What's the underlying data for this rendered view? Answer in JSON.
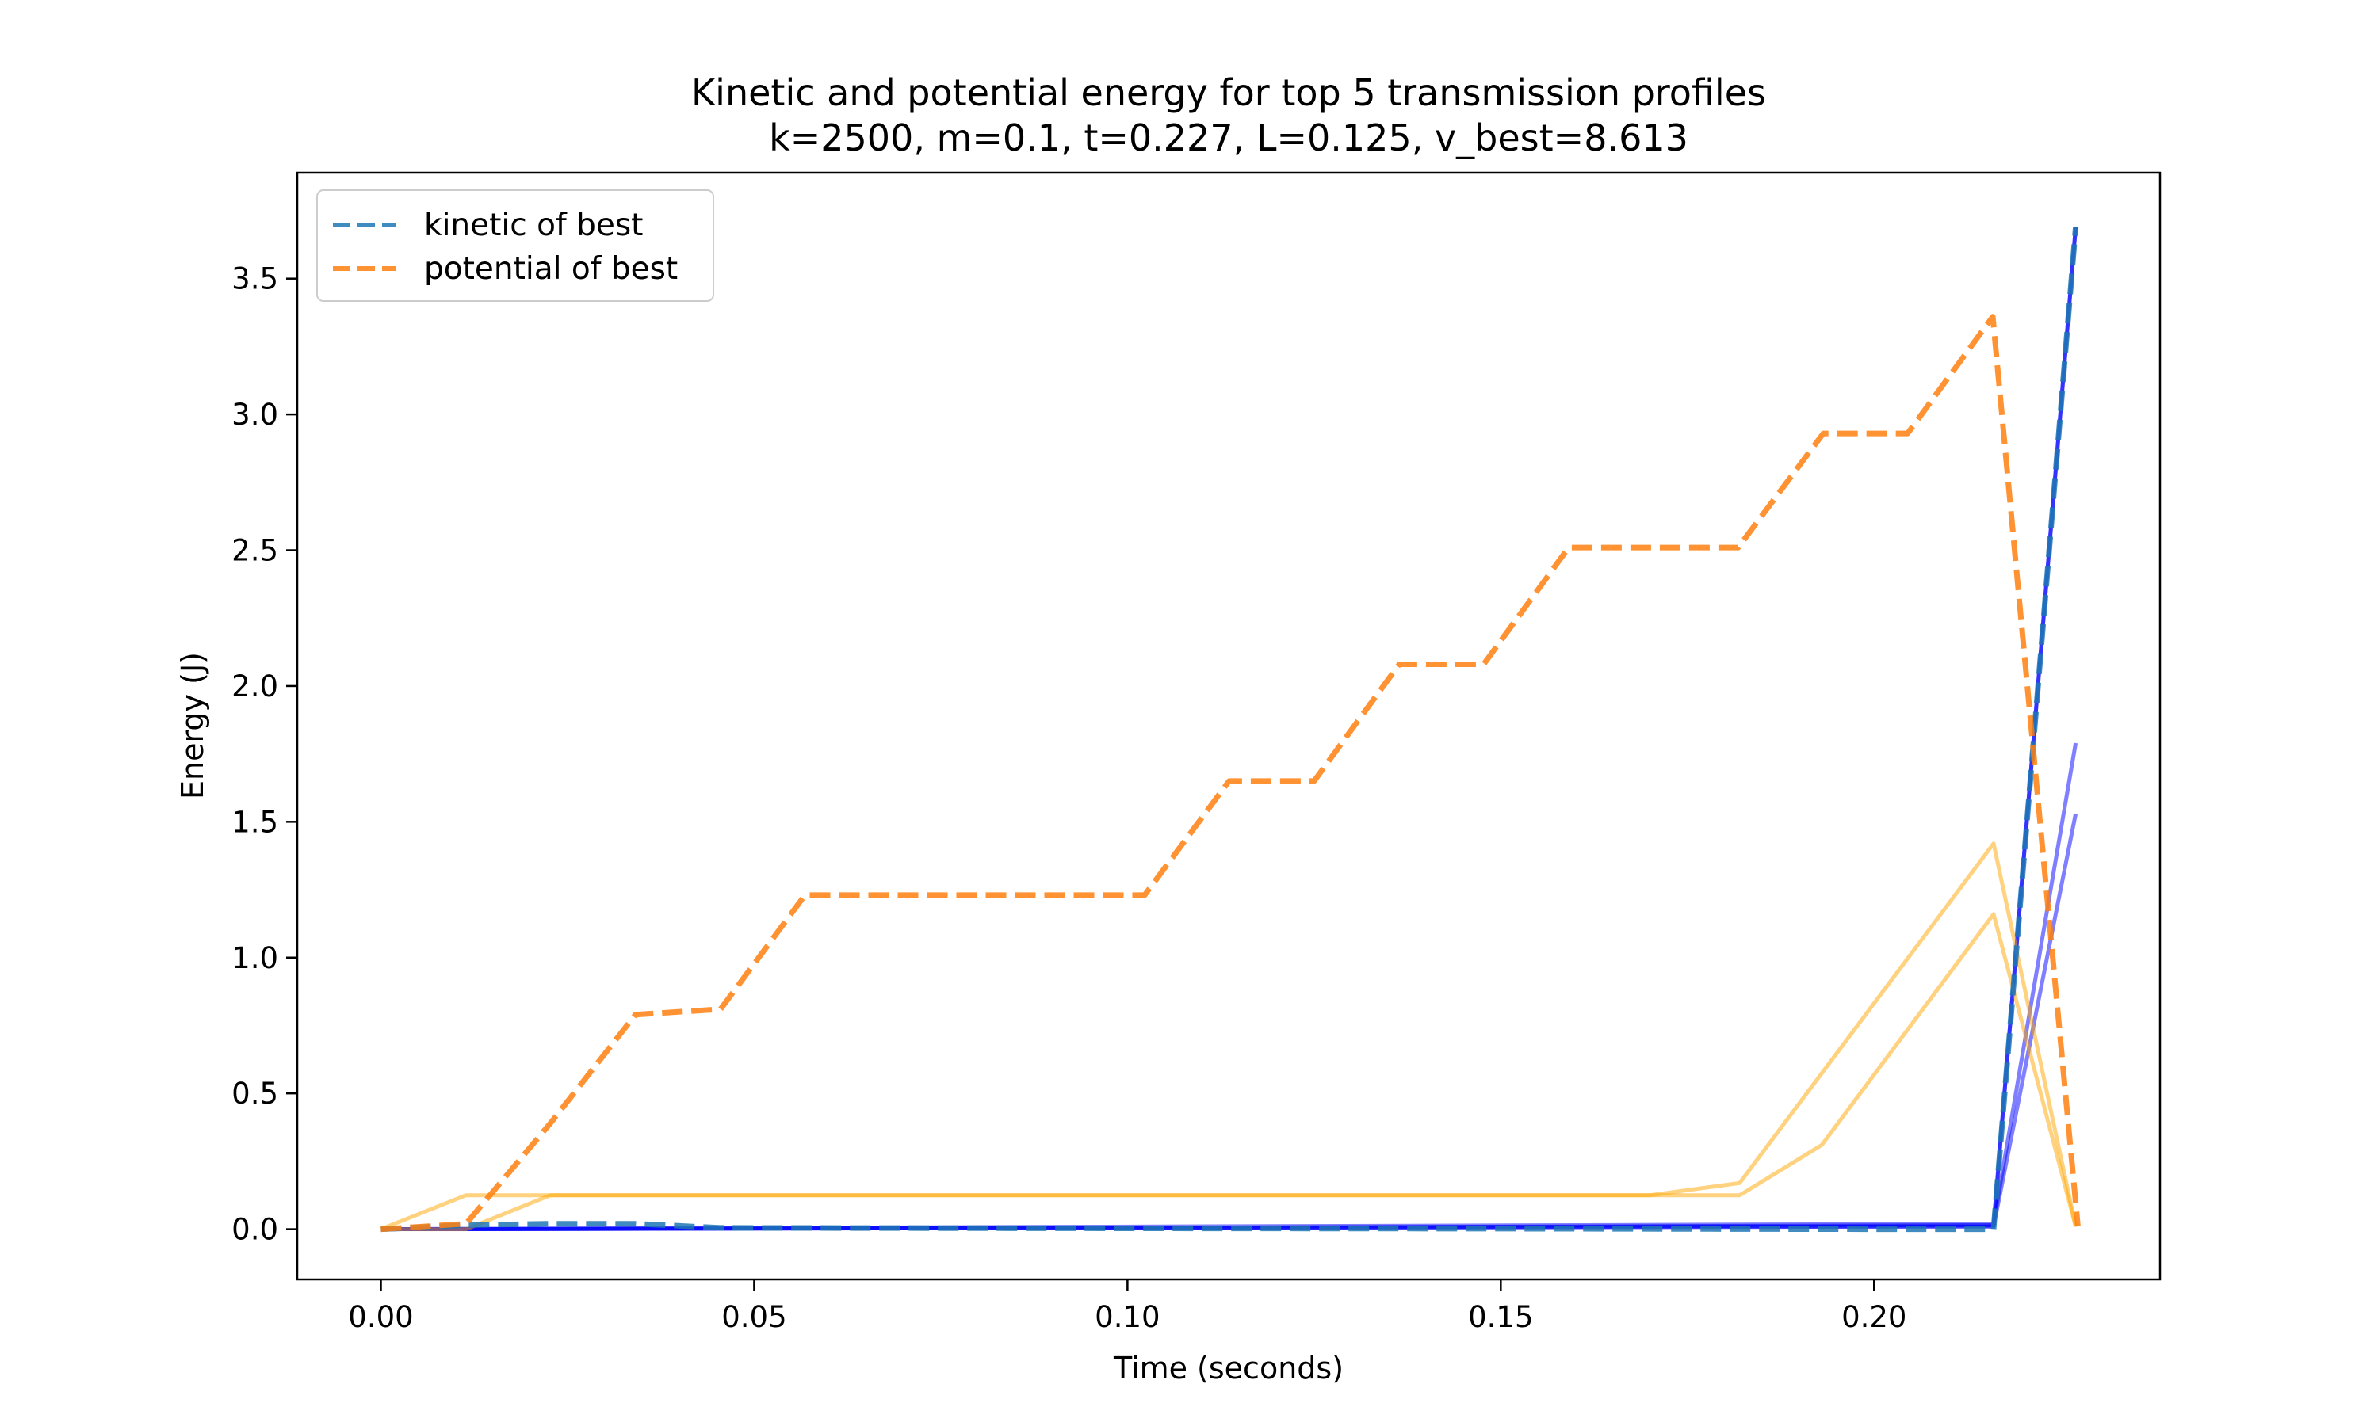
{
  "chart_data": {
    "type": "line",
    "title": "Kinetic and potential energy for top 5 transmission profiles",
    "subtitle": "k=2500, m=0.1, t=0.227, L=0.125, v_best=8.613",
    "xlabel": "Time (seconds)",
    "ylabel": "Energy (J)",
    "xlim": [
      -0.0112,
      0.2383
    ],
    "ylim": [
      -0.185,
      3.89
    ],
    "x_ticks": [
      0.0,
      0.05,
      0.1,
      0.15,
      0.2
    ],
    "x_tick_labels": [
      "0.00",
      "0.05",
      "0.10",
      "0.15",
      "0.20"
    ],
    "y_ticks": [
      0.0,
      0.5,
      1.0,
      1.5,
      2.0,
      2.5,
      3.0,
      3.5
    ],
    "y_tick_labels": [
      "0.0",
      "0.5",
      "1.0",
      "1.5",
      "2.0",
      "2.5",
      "3.0",
      "3.5"
    ],
    "grid": false,
    "legend_position": "top-left",
    "legend": [
      "kinetic of best",
      "potential of best"
    ],
    "series": [
      {
        "kind": "kinetic-other",
        "color": "#0000ff",
        "alpha": 0.5,
        "dashed": false,
        "x": [
          0.0,
          0.216,
          0.227
        ],
        "y": [
          0.0,
          0.02,
          1.79
        ]
      },
      {
        "kind": "kinetic-other",
        "color": "#0000ff",
        "alpha": 0.5,
        "dashed": false,
        "x": [
          0.0,
          0.216,
          0.227
        ],
        "y": [
          0.0,
          0.01,
          1.53
        ]
      },
      {
        "kind": "kinetic-other",
        "color": "#0000ff",
        "alpha": 0.5,
        "dashed": false,
        "x": [
          0.0,
          0.1,
          0.216,
          0.227
        ],
        "y": [
          0.0,
          0.005,
          0.01,
          3.69
        ]
      },
      {
        "kind": "kinetic-other",
        "color": "#0000ff",
        "alpha": 0.6,
        "dashed": false,
        "x": [
          0.0,
          0.1,
          0.216,
          0.227
        ],
        "y": [
          0.0,
          0.005,
          0.015,
          3.69
        ]
      },
      {
        "kind": "potential-other",
        "color": "#ffa500",
        "alpha": 0.5,
        "dashed": false,
        "x": [
          0.0,
          0.0114,
          0.0227,
          0.17,
          0.182,
          0.193,
          0.216,
          0.227
        ],
        "y": [
          0.0,
          0.125,
          0.125,
          0.125,
          0.125,
          0.31,
          1.16,
          0.01
        ]
      },
      {
        "kind": "potential-other",
        "color": "#ffa500",
        "alpha": 0.5,
        "dashed": false,
        "x": [
          0.0,
          0.0114,
          0.0227,
          0.17,
          0.182,
          0.216,
          0.227
        ],
        "y": [
          0.0,
          0.0,
          0.125,
          0.125,
          0.17,
          1.42,
          0.01
        ]
      },
      {
        "kind": "kinetic-best",
        "name": "kinetic of best",
        "color": "#1f77b4",
        "alpha": 0.85,
        "dashed": true,
        "x": [
          0.0,
          0.0114,
          0.0227,
          0.0341,
          0.0455,
          0.1,
          0.15,
          0.2,
          0.216,
          0.227
        ],
        "y": [
          0.0,
          0.015,
          0.02,
          0.02,
          0.005,
          0.003,
          0.002,
          0.0,
          0.0,
          3.69
        ]
      },
      {
        "kind": "potential-best",
        "name": "potential of best",
        "color": "#ff7f0e",
        "alpha": 0.85,
        "dashed": true,
        "x": [
          0.0,
          0.0114,
          0.0227,
          0.0341,
          0.0455,
          0.0568,
          0.1023,
          0.1136,
          0.125,
          0.1364,
          0.1477,
          0.1591,
          0.1818,
          0.1932,
          0.2045,
          0.2159,
          0.2273
        ],
        "y": [
          0.0,
          0.02,
          0.39,
          0.79,
          0.81,
          1.23,
          1.23,
          1.65,
          1.65,
          2.08,
          2.08,
          2.51,
          2.51,
          2.93,
          2.93,
          3.36,
          0.01
        ]
      }
    ]
  }
}
